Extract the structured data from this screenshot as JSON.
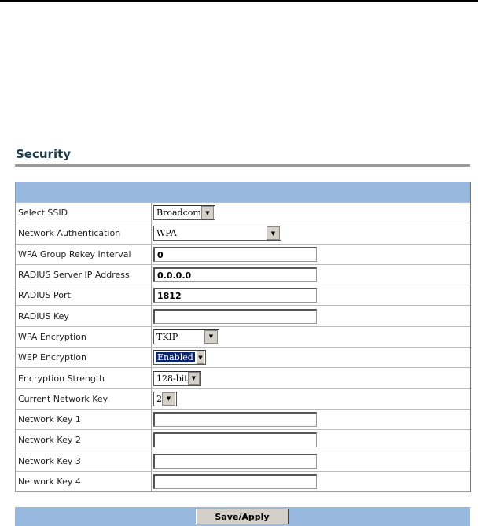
{
  "page_title": "Security",
  "fields": [
    {
      "label": "Select SSID",
      "type": "select",
      "value": "Broadcom"
    },
    {
      "label": "Network Authentication",
      "type": "select",
      "value": "WPA"
    },
    {
      "label": "WPA Group Rekey Interval",
      "type": "text",
      "value": "0"
    },
    {
      "label": "RADIUS Server IP Address",
      "type": "text",
      "value": "0.0.0.0"
    },
    {
      "label": "RADIUS Port",
      "type": "text",
      "value": "1812"
    },
    {
      "label": "RADIUS Key",
      "type": "text",
      "value": ""
    },
    {
      "label": "WPA Encryption",
      "type": "select",
      "value": "TKIP"
    },
    {
      "label": "WEP Encryption",
      "type": "select",
      "value": "Enabled"
    },
    {
      "label": "Encryption Strength",
      "type": "select",
      "value": "128-bit"
    },
    {
      "label": "Current Network Key",
      "type": "select",
      "value": "2"
    },
    {
      "label": "Network Key 1",
      "type": "text",
      "value": ""
    },
    {
      "label": "Network Key 2",
      "type": "text",
      "value": ""
    },
    {
      "label": "Network Key 3",
      "type": "text",
      "value": ""
    },
    {
      "label": "Network Key 4",
      "type": "text",
      "value": ""
    }
  ],
  "save_label": "Save/Apply",
  "colors": {
    "header_bar": "#98b8e0",
    "selection": "#0a246a"
  }
}
